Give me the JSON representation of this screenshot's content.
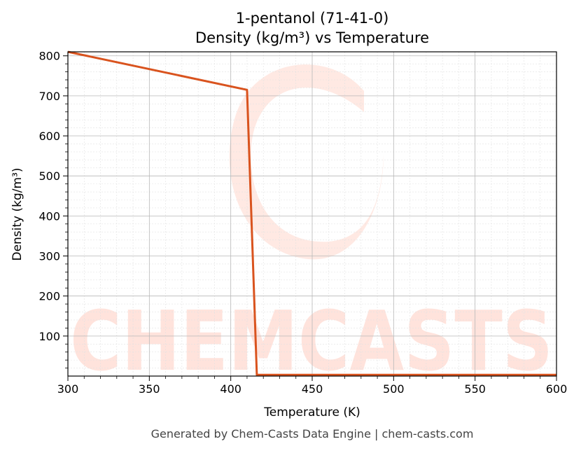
{
  "chart_data": {
    "type": "line",
    "title": "1-pentanol (71-41-0)",
    "subtitle": "Density (kg/m³) vs Temperature",
    "xlabel": "Temperature (K)",
    "ylabel": "Density (kg/m³)",
    "xlim": [
      300,
      600
    ],
    "ylim": [
      0,
      810
    ],
    "xticks": [
      300,
      350,
      400,
      450,
      500,
      550,
      600
    ],
    "yticks": [
      100,
      200,
      300,
      400,
      500,
      600,
      700,
      800
    ],
    "grid": true,
    "series": [
      {
        "color": "#d9531e",
        "x": [
          300,
          410,
          416,
          600
        ],
        "y": [
          810,
          715,
          3,
          3
        ]
      }
    ]
  },
  "watermark": {
    "text": "CHEMCASTS",
    "color": "#ffe3dc"
  },
  "footer": "Generated by Chem-Casts Data Engine | chem-casts.com"
}
